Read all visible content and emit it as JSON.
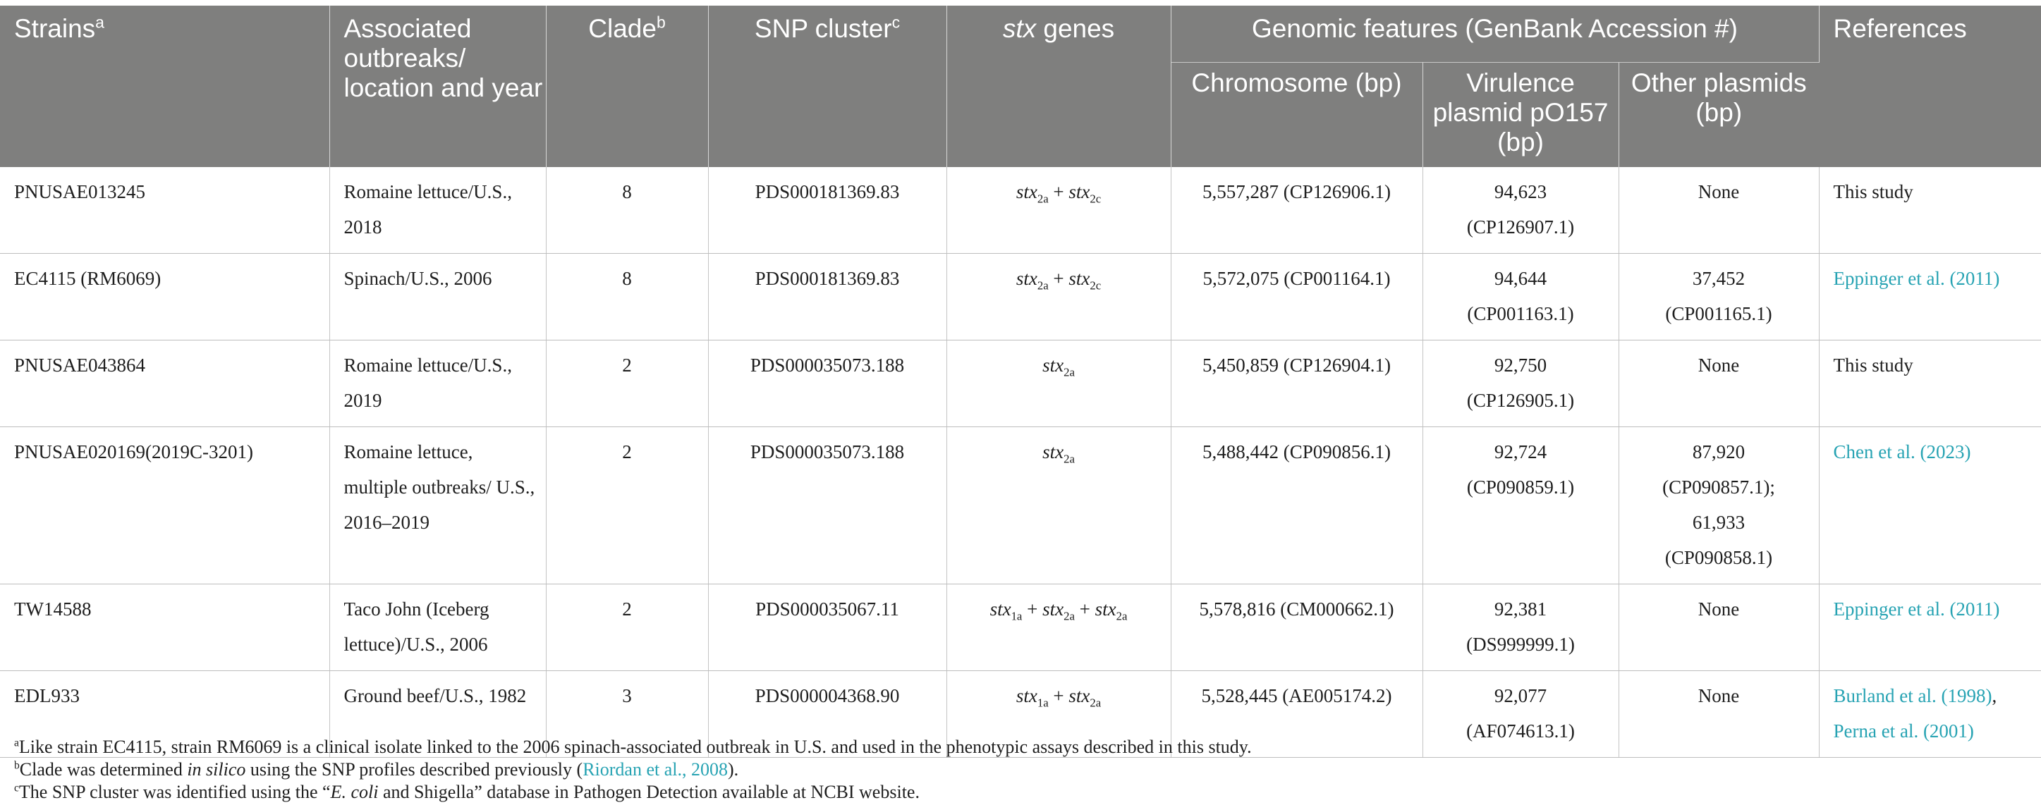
{
  "headers": {
    "strains": "Strains",
    "strains_sup": "a",
    "outbreaks": "Associated outbreaks/ location and year",
    "clade": "Clade",
    "clade_sup": "b",
    "snp": "SNP cluster",
    "snp_sup": "c",
    "stx_it": "stx",
    "stx_rest": " genes",
    "genomic": "Genomic features (GenBank Accession #)",
    "chromosome": "Chromosome (bp)",
    "virulence": "Virulence plasmid pO157 (bp)",
    "other_plasmids": "Other plasmids (bp)",
    "references": "References"
  },
  "rows": [
    {
      "strain": "PNUSAE013245",
      "outbreak": "Romaine lettuce/U.S., 2018",
      "clade": "8",
      "snp": "PDS000181369.83",
      "stx": [
        {
          "base": "stx",
          "sub": "2a"
        },
        {
          "base": "stx",
          "sub": "2c"
        }
      ],
      "chromosome": "5,557,287 (CP126906.1)",
      "virulence_size": "94,623",
      "virulence_acc": "(CP126907.1)",
      "other": [
        "None"
      ],
      "refs": [
        {
          "text": "This study",
          "link": false
        }
      ]
    },
    {
      "strain": "EC4115 (RM6069)",
      "outbreak": "Spinach/U.S., 2006",
      "clade": "8",
      "snp": "PDS000181369.83",
      "stx": [
        {
          "base": "stx",
          "sub": "2a"
        },
        {
          "base": "stx",
          "sub": "2c"
        }
      ],
      "chromosome": "5,572,075 (CP001164.1)",
      "virulence_size": "94,644",
      "virulence_acc": "(CP001163.1)",
      "other": [
        "37,452",
        "(CP001165.1)"
      ],
      "refs": [
        {
          "text": "Eppinger et al. (2011)",
          "link": true
        }
      ]
    },
    {
      "strain": "PNUSAE043864",
      "outbreak": "Romaine lettuce/U.S., 2019",
      "clade": "2",
      "snp": "PDS000035073.188",
      "stx": [
        {
          "base": "stx",
          "sub": "2a"
        }
      ],
      "chromosome": "5,450,859 (CP126904.1)",
      "virulence_size": "92,750",
      "virulence_acc": "(CP126905.1)",
      "other": [
        "None"
      ],
      "refs": [
        {
          "text": "This study",
          "link": false
        }
      ]
    },
    {
      "strain": "PNUSAE020169(2019C-3201)",
      "outbreak": "Romaine lettuce, multiple outbreaks/ U.S., 2016–2019",
      "clade": "2",
      "snp": "PDS000035073.188",
      "stx": [
        {
          "base": "stx",
          "sub": "2a"
        }
      ],
      "chromosome": "5,488,442 (CP090856.1)",
      "virulence_size": "92,724",
      "virulence_acc": "(CP090859.1)",
      "other": [
        "87,920",
        "(CP090857.1);",
        "61,933",
        "(CP090858.1)"
      ],
      "refs": [
        {
          "text": "Chen et al. (2023)",
          "link": true
        }
      ]
    },
    {
      "strain": "TW14588",
      "outbreak": "Taco John (Iceberg lettuce)/U.S., 2006",
      "clade": "2",
      "snp": "PDS000035067.11",
      "stx": [
        {
          "base": "stx",
          "sub": "1a"
        },
        {
          "base": "stx",
          "sub": "2a"
        },
        {
          "base": "stx",
          "sub": "2a"
        }
      ],
      "chromosome": "5,578,816 (CM000662.1)",
      "virulence_size": "92,381",
      "virulence_acc": "(DS999999.1)",
      "other": [
        "None"
      ],
      "refs": [
        {
          "text": "Eppinger et al. (2011)",
          "link": true
        }
      ]
    },
    {
      "strain": "EDL933",
      "outbreak": "Ground beef/U.S., 1982",
      "clade": "3",
      "snp": "PDS000004368.90",
      "stx": [
        {
          "base": "stx",
          "sub": "1a"
        },
        {
          "base": "stx",
          "sub": "2a"
        }
      ],
      "chromosome": "5,528,445 (AE005174.2)",
      "virulence_size": "92,077",
      "virulence_acc": "(AF074613.1)",
      "other": [
        "None"
      ],
      "refs": [
        {
          "text": "Burland et al. (1998)",
          "link": true
        },
        {
          "text": ",",
          "link": false
        },
        {
          "text": "Perna et al. (2001)",
          "link": true,
          "newline": true
        }
      ]
    }
  ],
  "footnotes": {
    "a_mark": "a",
    "a_text": "Like strain EC4115, strain RM6069 is a clinical isolate linked to the 2006 spinach-associated outbreak in U.S. and used in the phenotypic assays described in this study.",
    "b_mark": "b",
    "b_pre": "Clade was determined ",
    "b_it": "in silico",
    "b_mid": " using the SNP profiles described previously (",
    "b_link": "Riordan et al., 2008",
    "b_post": ").",
    "c_mark": "c",
    "c_pre": "The SNP cluster was identified using the “",
    "c_it": "E. coli",
    "c_post": " and Shigella” database in Pathogen Detection available at NCBI website."
  },
  "colors": {
    "header_bg": "#7f7f7e",
    "link": "#27a3b3"
  }
}
